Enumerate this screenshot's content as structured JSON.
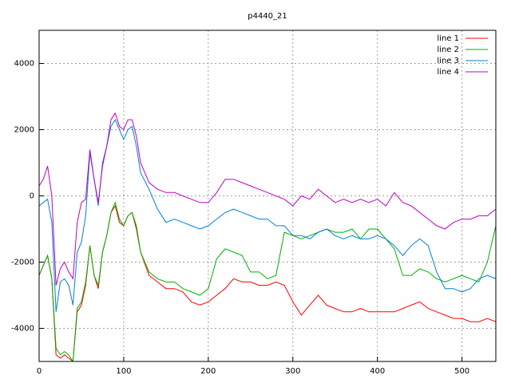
{
  "chart_data": {
    "type": "line",
    "title": "p4440_21",
    "x": [
      0,
      5,
      10,
      15,
      20,
      25,
      30,
      35,
      40,
      45,
      50,
      55,
      60,
      65,
      70,
      75,
      80,
      85,
      90,
      95,
      100,
      105,
      110,
      115,
      120,
      130,
      140,
      150,
      160,
      170,
      180,
      190,
      200,
      210,
      220,
      230,
      240,
      250,
      260,
      270,
      280,
      290,
      300,
      310,
      320,
      330,
      340,
      350,
      360,
      370,
      380,
      390,
      400,
      410,
      420,
      430,
      440,
      450,
      460,
      470,
      480,
      490,
      500,
      510,
      520,
      530,
      540
    ],
    "series": [
      {
        "name": "line 1",
        "color": "#ff0000",
        "values": [
          -2400,
          -2100,
          -1800,
          -2500,
          -4800,
          -4900,
          -4800,
          -4900,
          -5000,
          -3500,
          -3300,
          -2700,
          -1500,
          -2400,
          -2800,
          -1700,
          -1200,
          -500,
          -300,
          -800,
          -900,
          -600,
          -500,
          -1000,
          -1700,
          -2400,
          -2600,
          -2800,
          -2800,
          -2900,
          -3200,
          -3300,
          -3200,
          -3000,
          -2800,
          -2500,
          -2600,
          -2600,
          -2700,
          -2700,
          -2600,
          -2700,
          -3200,
          -3600,
          -3300,
          -3000,
          -3300,
          -3400,
          -3500,
          -3500,
          -3400,
          -3500,
          -3500,
          -3500,
          -3500,
          -3400,
          -3300,
          -3200,
          -3400,
          -3500,
          -3600,
          -3700,
          -3700,
          -3800,
          -3800,
          -3700,
          -3800
        ]
      },
      {
        "name": "line 2",
        "color": "#00b000",
        "values": [
          -2400,
          -2100,
          -1800,
          -2500,
          -4600,
          -4800,
          -4700,
          -4800,
          -5000,
          -3400,
          -3200,
          -2600,
          -1500,
          -2400,
          -2700,
          -1700,
          -1200,
          -500,
          -200,
          -700,
          -900,
          -600,
          -500,
          -900,
          -1700,
          -2300,
          -2500,
          -2600,
          -2600,
          -2800,
          -2900,
          -3000,
          -2800,
          -1900,
          -1600,
          -1700,
          -1800,
          -2300,
          -2300,
          -2500,
          -2400,
          -1100,
          -1200,
          -1300,
          -1200,
          -1100,
          -1000,
          -1100,
          -1100,
          -1000,
          -1300,
          -1000,
          -1000,
          -1300,
          -1600,
          -2400,
          -2400,
          -2200,
          -2300,
          -2500,
          -2600,
          -2500,
          -2400,
          -2500,
          -2600,
          -2000,
          -900
        ]
      },
      {
        "name": "line 3",
        "color": "#0080e0",
        "values": [
          -300,
          -200,
          -100,
          -800,
          -3500,
          -2600,
          -2500,
          -2700,
          -3300,
          -1700,
          -1400,
          -600,
          1300,
          500,
          -300,
          1000,
          1500,
          2100,
          2300,
          2000,
          1700,
          2000,
          2100,
          1500,
          700,
          200,
          -400,
          -800,
          -700,
          -800,
          -900,
          -1000,
          -900,
          -700,
          -500,
          -400,
          -500,
          -600,
          -700,
          -700,
          -900,
          -900,
          -1200,
          -1200,
          -1300,
          -1100,
          -1000,
          -1200,
          -1300,
          -1200,
          -1300,
          -1300,
          -1200,
          -1300,
          -1500,
          -1800,
          -1500,
          -1300,
          -1500,
          -2300,
          -2800,
          -2800,
          -2900,
          -2800,
          -2500,
          -2400,
          -2500
        ]
      },
      {
        "name": "line 4",
        "color": "#c000c0",
        "values": [
          300,
          500,
          900,
          0,
          -2700,
          -2200,
          -2000,
          -2300,
          -2500,
          -800,
          -200,
          -100,
          1400,
          500,
          -200,
          900,
          1500,
          2300,
          2500,
          2100,
          2000,
          2300,
          2300,
          1800,
          1000,
          400,
          200,
          100,
          100,
          0,
          -100,
          -200,
          -200,
          100,
          500,
          500,
          400,
          300,
          200,
          100,
          0,
          -100,
          -300,
          0,
          -100,
          200,
          0,
          -200,
          -100,
          -200,
          -100,
          -200,
          -100,
          -300,
          100,
          -200,
          -300,
          -500,
          -700,
          -900,
          -1000,
          -800,
          -700,
          -700,
          -600,
          -600,
          -400
        ]
      }
    ],
    "xlim": [
      0,
      540
    ],
    "ylim": [
      -5000,
      5000
    ],
    "xticks": [
      0,
      100,
      200,
      300,
      400,
      500
    ],
    "yticks": [
      -4000,
      -2000,
      0,
      2000,
      4000
    ],
    "grid": true,
    "legend": "top-right"
  }
}
